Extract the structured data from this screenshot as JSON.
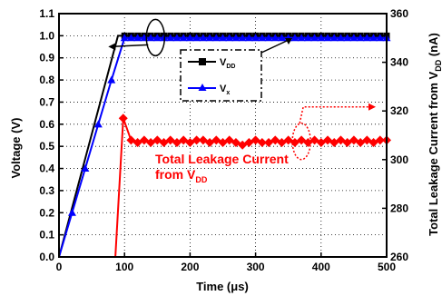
{
  "chart_data": {
    "type": "line",
    "x_title": "Time (",
    "x_title_mu": "μ",
    "x_title_end": "s)",
    "y_left_title": "Voltage (V)",
    "y_right_title": "Total Leakage Current from V",
    "y_right_title_sub": "DD",
    "y_right_title_end": " (nA)",
    "xlim": [
      0,
      500
    ],
    "ylim_left": [
      0,
      1.1
    ],
    "ylim_right": [
      260,
      360
    ],
    "x_ticks": [
      0,
      100,
      200,
      300,
      400,
      500
    ],
    "y_left_ticks": [
      "0.0",
      "0.1",
      "0.2",
      "0.3",
      "0.4",
      "0.5",
      "0.6",
      "0.7",
      "0.8",
      "0.9",
      "1.0",
      "1.1"
    ],
    "y_right_ticks": [
      260,
      280,
      300,
      320,
      340,
      360
    ],
    "grid": "dotted",
    "legend_position": "top-center",
    "legend": [
      {
        "label": "V",
        "sub": "DD",
        "marker": "square",
        "color": "#000000"
      },
      {
        "label": "V",
        "sub": "x",
        "marker": "triangle",
        "color": "#0000ff"
      }
    ],
    "annotation": {
      "line1": "Total Leakage Current",
      "line2": "from V",
      "sub": "DD",
      "color": "#ff0000"
    },
    "series": [
      {
        "name": "VDD",
        "axis": "left",
        "color": "#000000",
        "marker": "square",
        "x": [
          0,
          90,
          100,
          110,
          120,
          130,
          140,
          150,
          160,
          170,
          180,
          190,
          200,
          210,
          220,
          230,
          240,
          250,
          260,
          270,
          280,
          290,
          300,
          310,
          320,
          330,
          340,
          350,
          360,
          370,
          380,
          390,
          400,
          410,
          420,
          430,
          440,
          450,
          460,
          470,
          480,
          490,
          500
        ],
        "y": [
          0,
          1.0,
          1.0,
          1.0,
          1.0,
          1.0,
          1.0,
          1.0,
          1.0,
          1.0,
          1.0,
          1.0,
          1.0,
          1.0,
          1.0,
          1.0,
          1.0,
          1.0,
          1.0,
          1.0,
          1.0,
          1.0,
          1.0,
          1.0,
          1.0,
          1.0,
          1.0,
          1.0,
          1.0,
          1.0,
          1.0,
          1.0,
          1.0,
          1.0,
          1.0,
          1.0,
          1.0,
          1.0,
          1.0,
          1.0,
          1.0,
          1.0,
          1.0
        ],
        "markers_from": 2
      },
      {
        "name": "Vx",
        "axis": "left",
        "color": "#0000ff",
        "marker": "triangle",
        "x": [
          0,
          20,
          40,
          60,
          80,
          100,
          110,
          120,
          130,
          140,
          150,
          160,
          170,
          180,
          190,
          200,
          210,
          220,
          230,
          240,
          250,
          260,
          270,
          280,
          290,
          300,
          310,
          320,
          330,
          340,
          350,
          360,
          370,
          380,
          390,
          400,
          410,
          420,
          430,
          440,
          450,
          460,
          470,
          480,
          490,
          500
        ],
        "y": [
          0,
          0.2,
          0.4,
          0.6,
          0.8,
          0.99,
          0.99,
          0.99,
          0.99,
          0.99,
          0.99,
          0.99,
          0.99,
          0.99,
          0.99,
          0.99,
          0.99,
          0.99,
          0.99,
          0.99,
          0.99,
          0.99,
          0.99,
          0.99,
          0.99,
          0.99,
          0.99,
          0.99,
          0.99,
          0.99,
          0.99,
          0.99,
          0.99,
          0.99,
          0.99,
          0.99,
          0.99,
          0.99,
          0.99,
          0.99,
          0.99,
          0.99,
          0.99,
          0.99,
          0.99,
          0.99
        ],
        "markers_from": 1
      },
      {
        "name": "Total Leakage Current from VDD",
        "axis": "right",
        "color": "#ff0000",
        "marker": "diamond",
        "x": [
          86,
          98,
          110,
          120,
          130,
          140,
          150,
          160,
          170,
          180,
          190,
          200,
          210,
          220,
          230,
          240,
          250,
          260,
          270,
          280,
          290,
          300,
          310,
          320,
          330,
          340,
          350,
          360,
          370,
          380,
          390,
          400,
          410,
          420,
          430,
          440,
          450,
          460,
          470,
          480,
          490,
          500
        ],
        "y": [
          260,
          317,
          308,
          307,
          308,
          307,
          308,
          307,
          308,
          307,
          308,
          307,
          308,
          308,
          307,
          308,
          307,
          308,
          307,
          306,
          307,
          308,
          307,
          307,
          308,
          307,
          308,
          307,
          308,
          307,
          308,
          307,
          308,
          307,
          308,
          307,
          308,
          307,
          308,
          307,
          308,
          308
        ],
        "markers_from": 1
      }
    ]
  }
}
